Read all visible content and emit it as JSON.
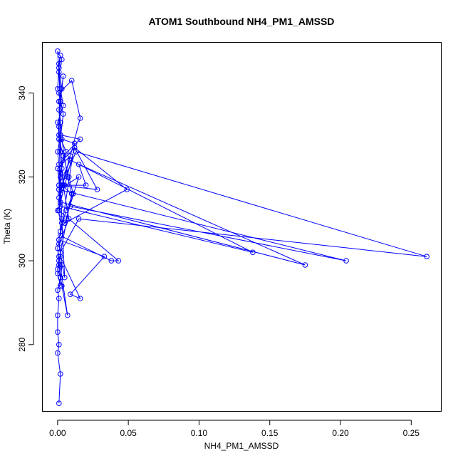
{
  "chart_data": {
    "type": "line",
    "title": "ATOM1 Southbound NH4_PM1_AMSSD",
    "xlabel": "NH4_PM1_AMSSD",
    "ylabel": "Theta (K)",
    "xlim": [
      -0.0105,
      0.2715
    ],
    "ylim": [
      264,
      352
    ],
    "x_ticks": [
      0.0,
      0.05,
      0.1,
      0.15,
      0.2,
      0.25
    ],
    "x_tick_labels": [
      "0.00",
      "0.05",
      "0.10",
      "0.15",
      "0.20",
      "0.25"
    ],
    "y_ticks": [
      280,
      300,
      320,
      340
    ],
    "y_tick_labels": [
      "280",
      "300",
      "320",
      "340"
    ],
    "grid": false,
    "legend": "none",
    "color": "#0000ff",
    "marker": "open-circle",
    "series": [
      {
        "x": [
          0.001,
          0.002,
          0.0,
          0.001,
          0.0,
          0.0,
          0.001,
          0.0,
          0.002,
          0.0,
          0.001,
          0.007,
          0.003,
          0.001,
          0.0,
          0.001,
          0.003,
          0.0,
          0.001,
          0.005,
          0.002,
          0.006,
          0.001,
          0.0,
          0.004,
          0.002,
          0.001,
          0.003,
          0.0,
          0.002,
          0.001,
          0.002,
          0.004,
          0.008,
          0.001,
          0.003,
          0.002,
          0.0,
          0.001,
          0.01,
          0.007,
          0.003,
          0.012,
          0.002,
          0.038,
          0.043,
          0.001,
          0.003,
          0.009,
          0.0,
          0.002,
          0.016,
          0.01,
          0.001,
          0.004,
          0.002,
          0.003,
          0.001,
          0.015,
          0.005,
          0.049,
          0.012,
          0.001,
          0.002,
          0.138,
          0.009,
          0.001,
          0.028,
          0.012,
          0.002,
          0.175,
          0.015,
          0.02,
          0.003,
          0.001,
          0.204,
          0.009,
          0.01,
          0.003,
          0.013,
          0.261,
          0.015,
          0.002,
          0.001,
          0.033,
          0.009,
          0.016,
          0.002,
          0.005,
          0.003,
          0.001,
          0.008,
          0.011,
          0.006,
          0.002,
          0.001,
          0.004,
          0.016,
          0.002,
          0.002,
          0.001,
          0.003,
          0.001,
          0.002,
          0.001,
          0.0,
          0.002,
          0.004,
          0.001,
          0.002,
          0.0,
          0.002
        ],
        "y": [
          266,
          273,
          278,
          280,
          283,
          287,
          291,
          293,
          296,
          298,
          301,
          287,
          294,
          299,
          303,
          305,
          309,
          312,
          315,
          318,
          321,
          326,
          330,
          333,
          337,
          341,
          345,
          348,
          350,
          338,
          332,
          326,
          318,
          310,
          304,
          299,
          294,
          297,
          300,
          316,
          320,
          329,
          328,
          306,
          300,
          300,
          312,
          318,
          325,
          322,
          316,
          334,
          343,
          340,
          335,
          329,
          322,
          317,
          320,
          309,
          317,
          327,
          323,
          313,
          302,
          324,
          318,
          317,
          327,
          314,
          299,
          323,
          318,
          318,
          317,
          300,
          313,
          316,
          318,
          326,
          301,
          310,
          302,
          305,
          301,
          292,
          291,
          301,
          296,
          310,
          329,
          320,
          316,
          312,
          307,
          318,
          325,
          329,
          330,
          333,
          338,
          341,
          346,
          349,
          347,
          341,
          338,
          344,
          336,
          330,
          326,
          320
        ]
      }
    ]
  }
}
